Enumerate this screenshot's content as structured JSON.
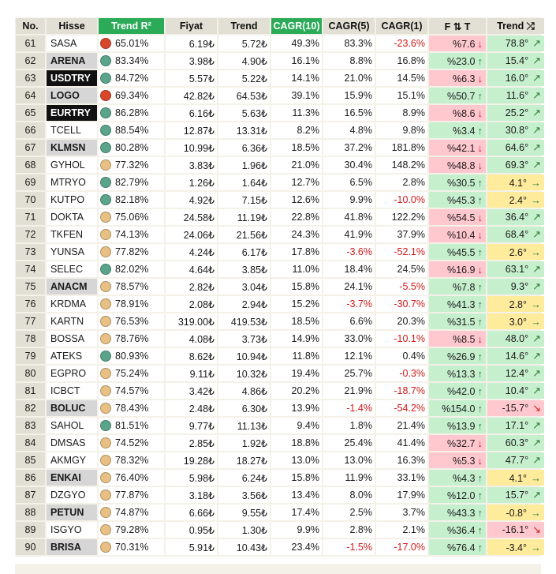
{
  "colors": {
    "up": "#2e7d32",
    "down": "#d11a1a",
    "dot_green": "#5aa58a",
    "dot_orange": "#e8c084",
    "dot_red": "#d9472b",
    "hl": "#2bab57"
  },
  "headers": {
    "no": "No.",
    "hisse": "Hisse",
    "trend_r2": "Trend R²",
    "fiyat": "Fiyat",
    "trend": "Trend",
    "cagr10": "CAGR(10)",
    "cagr5": "CAGR(5)",
    "cagr1": "CAGR(1)",
    "ft": "F ⇅ T",
    "trend_dir": "Trend ⤮"
  },
  "rows": [
    {
      "no": "61",
      "sym": "SASA",
      "style": "plain",
      "dot": "red",
      "r2": "65.01%",
      "fiyat": "6.19₺",
      "trend": "5.72₺",
      "c10": "49.3%",
      "c5": "83.3%",
      "c1": "-23.6%",
      "ft": "%7.6",
      "ftdir": "down",
      "td": "78.8°",
      "tdir": "up",
      "tcol": "green"
    },
    {
      "no": "62",
      "sym": "ARENA",
      "style": "grey",
      "dot": "green",
      "r2": "83.34%",
      "fiyat": "3.98₺",
      "trend": "4.90₺",
      "c10": "16.1%",
      "c5": "8.8%",
      "c1": "16.8%",
      "ft": "%23.0",
      "ftdir": "up",
      "td": "15.4°",
      "tdir": "up",
      "tcol": "green"
    },
    {
      "no": "63",
      "sym": "USDTRY",
      "style": "black",
      "dot": "green",
      "r2": "84.72%",
      "fiyat": "5.57₺",
      "trend": "5.22₺",
      "c10": "14.1%",
      "c5": "21.0%",
      "c1": "14.5%",
      "ft": "%6.3",
      "ftdir": "down",
      "td": "16.0°",
      "tdir": "up",
      "tcol": "green"
    },
    {
      "no": "64",
      "sym": "LOGO",
      "style": "grey",
      "dot": "red",
      "r2": "69.34%",
      "fiyat": "42.82₺",
      "trend": "64.53₺",
      "c10": "39.1%",
      "c5": "15.9%",
      "c1": "15.1%",
      "ft": "%50.7",
      "ftdir": "up",
      "td": "11.6°",
      "tdir": "up",
      "tcol": "green"
    },
    {
      "no": "65",
      "sym": "EURTRY",
      "style": "black",
      "dot": "green",
      "r2": "86.28%",
      "fiyat": "6.16₺",
      "trend": "5.63₺",
      "c10": "11.3%",
      "c5": "16.5%",
      "c1": "8.9%",
      "ft": "%8.6",
      "ftdir": "down",
      "td": "25.2°",
      "tdir": "up",
      "tcol": "green"
    },
    {
      "no": "66",
      "sym": "TCELL",
      "style": "plain",
      "dot": "green",
      "r2": "88.54%",
      "fiyat": "12.87₺",
      "trend": "13.31₺",
      "c10": "8.2%",
      "c5": "4.8%",
      "c1": "9.8%",
      "ft": "%3.4",
      "ftdir": "up",
      "td": "30.8°",
      "tdir": "up",
      "tcol": "green"
    },
    {
      "no": "67",
      "sym": "KLMSN",
      "style": "grey",
      "dot": "green",
      "r2": "80.28%",
      "fiyat": "10.99₺",
      "trend": "6.36₺",
      "c10": "18.5%",
      "c5": "37.2%",
      "c1": "181.8%",
      "ft": "%42.1",
      "ftdir": "down",
      "td": "64.6°",
      "tdir": "up",
      "tcol": "green"
    },
    {
      "no": "68",
      "sym": "GYHOL",
      "style": "plain",
      "dot": "orange",
      "r2": "77.32%",
      "fiyat": "3.83₺",
      "trend": "1.96₺",
      "c10": "21.0%",
      "c5": "30.4%",
      "c1": "148.2%",
      "ft": "%48.8",
      "ftdir": "down",
      "td": "69.3°",
      "tdir": "up",
      "tcol": "green"
    },
    {
      "no": "69",
      "sym": "MTRYO",
      "style": "plain",
      "dot": "green",
      "r2": "82.79%",
      "fiyat": "1.26₺",
      "trend": "1.64₺",
      "c10": "12.7%",
      "c5": "6.5%",
      "c1": "2.8%",
      "ft": "%30.5",
      "ftdir": "up",
      "td": "4.1°",
      "tdir": "right",
      "tcol": "yellow"
    },
    {
      "no": "70",
      "sym": "KUTPO",
      "style": "plain",
      "dot": "green",
      "r2": "82.18%",
      "fiyat": "4.92₺",
      "trend": "7.15₺",
      "c10": "12.6%",
      "c5": "9.9%",
      "c1": "-10.0%",
      "ft": "%45.3",
      "ftdir": "up",
      "td": "2.4°",
      "tdir": "right",
      "tcol": "yellow"
    },
    {
      "no": "71",
      "sym": "DOKTA",
      "style": "plain",
      "dot": "orange",
      "r2": "75.06%",
      "fiyat": "24.58₺",
      "trend": "11.19₺",
      "c10": "22.8%",
      "c5": "41.8%",
      "c1": "122.2%",
      "ft": "%54.5",
      "ftdir": "down",
      "td": "36.4°",
      "tdir": "up",
      "tcol": "green"
    },
    {
      "no": "72",
      "sym": "TKFEN",
      "style": "plain",
      "dot": "orange",
      "r2": "74.13%",
      "fiyat": "24.06₺",
      "trend": "21.56₺",
      "c10": "24.3%",
      "c5": "41.9%",
      "c1": "37.9%",
      "ft": "%10.4",
      "ftdir": "down",
      "td": "68.4°",
      "tdir": "up",
      "tcol": "green"
    },
    {
      "no": "73",
      "sym": "YUNSA",
      "style": "plain",
      "dot": "orange",
      "r2": "77.82%",
      "fiyat": "4.24₺",
      "trend": "6.17₺",
      "c10": "17.8%",
      "c5": "-3.6%",
      "c1": "-52.1%",
      "ft": "%45.5",
      "ftdir": "up",
      "td": "2.6°",
      "tdir": "right",
      "tcol": "yellow"
    },
    {
      "no": "74",
      "sym": "SELEC",
      "style": "plain",
      "dot": "green",
      "r2": "82.02%",
      "fiyat": "4.64₺",
      "trend": "3.85₺",
      "c10": "11.0%",
      "c5": "18.4%",
      "c1": "24.5%",
      "ft": "%16.9",
      "ftdir": "down",
      "td": "63.1°",
      "tdir": "up",
      "tcol": "green"
    },
    {
      "no": "75",
      "sym": "ANACM",
      "style": "grey",
      "dot": "orange",
      "r2": "78.57%",
      "fiyat": "2.82₺",
      "trend": "3.04₺",
      "c10": "15.8%",
      "c5": "24.1%",
      "c1": "-5.5%",
      "ft": "%7.8",
      "ftdir": "up",
      "td": "9.3°",
      "tdir": "up",
      "tcol": "green"
    },
    {
      "no": "76",
      "sym": "KRDMA",
      "style": "plain",
      "dot": "orange",
      "r2": "78.91%",
      "fiyat": "2.08₺",
      "trend": "2.94₺",
      "c10": "15.2%",
      "c5": "-3.7%",
      "c1": "-30.7%",
      "ft": "%41.3",
      "ftdir": "up",
      "td": "2.8°",
      "tdir": "right",
      "tcol": "yellow"
    },
    {
      "no": "77",
      "sym": "KARTN",
      "style": "plain",
      "dot": "orange",
      "r2": "76.53%",
      "fiyat": "319.00₺",
      "trend": "419.53₺",
      "c10": "18.5%",
      "c5": "6.6%",
      "c1": "20.3%",
      "ft": "%31.5",
      "ftdir": "up",
      "td": "3.0°",
      "tdir": "right",
      "tcol": "yellow"
    },
    {
      "no": "78",
      "sym": "BOSSA",
      "style": "plain",
      "dot": "orange",
      "r2": "78.76%",
      "fiyat": "4.08₺",
      "trend": "3.73₺",
      "c10": "14.9%",
      "c5": "33.0%",
      "c1": "-10.1%",
      "ft": "%8.5",
      "ftdir": "down",
      "td": "48.0°",
      "tdir": "up",
      "tcol": "green"
    },
    {
      "no": "79",
      "sym": "ATEKS",
      "style": "plain",
      "dot": "green",
      "r2": "80.93%",
      "fiyat": "8.62₺",
      "trend": "10.94₺",
      "c10": "11.8%",
      "c5": "12.1%",
      "c1": "0.4%",
      "ft": "%26.9",
      "ftdir": "up",
      "td": "14.6°",
      "tdir": "up",
      "tcol": "green"
    },
    {
      "no": "80",
      "sym": "EGPRO",
      "style": "plain",
      "dot": "orange",
      "r2": "75.24%",
      "fiyat": "9.11₺",
      "trend": "10.32₺",
      "c10": "19.4%",
      "c5": "25.7%",
      "c1": "-0.3%",
      "ft": "%13.3",
      "ftdir": "up",
      "td": "12.4°",
      "tdir": "up",
      "tcol": "green"
    },
    {
      "no": "81",
      "sym": "ICBCT",
      "style": "plain",
      "dot": "orange",
      "r2": "74.57%",
      "fiyat": "3.42₺",
      "trend": "4.86₺",
      "c10": "20.2%",
      "c5": "21.9%",
      "c1": "-18.7%",
      "ft": "%42.0",
      "ftdir": "up",
      "td": "10.4°",
      "tdir": "up",
      "tcol": "green"
    },
    {
      "no": "82",
      "sym": "BOLUC",
      "style": "grey",
      "dot": "orange",
      "r2": "78.43%",
      "fiyat": "2.48₺",
      "trend": "6.30₺",
      "c10": "13.9%",
      "c5": "-1.4%",
      "c1": "-54.2%",
      "ft": "%154.0",
      "ftdir": "up",
      "td": "-15.7°",
      "tdir": "downright",
      "tcol": "red"
    },
    {
      "no": "83",
      "sym": "SAHOL",
      "style": "plain",
      "dot": "green",
      "r2": "81.51%",
      "fiyat": "9.77₺",
      "trend": "11.13₺",
      "c10": "9.4%",
      "c5": "1.8%",
      "c1": "21.4%",
      "ft": "%13.9",
      "ftdir": "up",
      "td": "17.1°",
      "tdir": "up",
      "tcol": "green"
    },
    {
      "no": "84",
      "sym": "DMSAS",
      "style": "plain",
      "dot": "orange",
      "r2": "74.52%",
      "fiyat": "2.85₺",
      "trend": "1.92₺",
      "c10": "18.8%",
      "c5": "25.4%",
      "c1": "41.4%",
      "ft": "%32.7",
      "ftdir": "down",
      "td": "60.3°",
      "tdir": "up",
      "tcol": "green"
    },
    {
      "no": "85",
      "sym": "AKMGY",
      "style": "plain",
      "dot": "orange",
      "r2": "78.32%",
      "fiyat": "19.28₺",
      "trend": "18.27₺",
      "c10": "13.0%",
      "c5": "13.0%",
      "c1": "16.3%",
      "ft": "%5.3",
      "ftdir": "down",
      "td": "47.7°",
      "tdir": "up",
      "tcol": "green"
    },
    {
      "no": "86",
      "sym": "ENKAI",
      "style": "grey",
      "dot": "orange",
      "r2": "76.40%",
      "fiyat": "5.98₺",
      "trend": "6.24₺",
      "c10": "15.8%",
      "c5": "11.9%",
      "c1": "33.1%",
      "ft": "%4.3",
      "ftdir": "up",
      "td": "4.1°",
      "tdir": "right",
      "tcol": "yellow"
    },
    {
      "no": "87",
      "sym": "DZGYO",
      "style": "plain",
      "dot": "orange",
      "r2": "77.87%",
      "fiyat": "3.18₺",
      "trend": "3.56₺",
      "c10": "13.4%",
      "c5": "8.0%",
      "c1": "17.9%",
      "ft": "%12.0",
      "ftdir": "up",
      "td": "15.7°",
      "tdir": "up",
      "tcol": "green"
    },
    {
      "no": "88",
      "sym": "PETUN",
      "style": "grey",
      "dot": "orange",
      "r2": "74.87%",
      "fiyat": "6.66₺",
      "trend": "9.55₺",
      "c10": "17.4%",
      "c5": "2.5%",
      "c1": "3.7%",
      "ft": "%43.3",
      "ftdir": "up",
      "td": "-0.8°",
      "tdir": "right",
      "tcol": "yellow"
    },
    {
      "no": "89",
      "sym": "ISGYO",
      "style": "plain",
      "dot": "orange",
      "r2": "79.28%",
      "fiyat": "0.95₺",
      "trend": "1.30₺",
      "c10": "9.9%",
      "c5": "2.8%",
      "c1": "2.1%",
      "ft": "%36.4",
      "ftdir": "up",
      "td": "-16.1°",
      "tdir": "downright",
      "tcol": "red"
    },
    {
      "no": "90",
      "sym": "BRISA",
      "style": "grey",
      "dot": "orange",
      "r2": "70.31%",
      "fiyat": "5.91₺",
      "trend": "10.43₺",
      "c10": "23.4%",
      "c5": "-1.5%",
      "c1": "-17.0%",
      "ft": "%76.4",
      "ftdir": "up",
      "td": "-3.4°",
      "tdir": "right",
      "tcol": "yellow"
    }
  ]
}
